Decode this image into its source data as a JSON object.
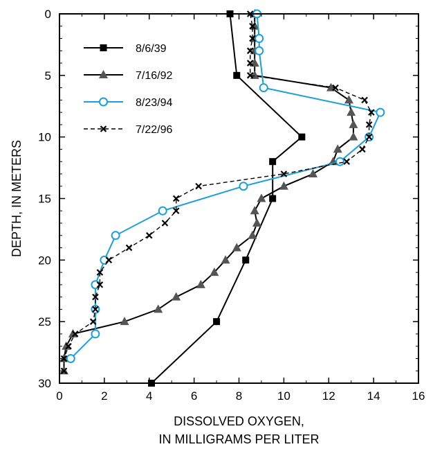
{
  "chart_data": {
    "type": "line",
    "xlabel_lines": [
      "DISSOLVED OXYGEN,",
      "IN MILLIGRAMS PER LITER"
    ],
    "ylabel": "DEPTH, IN METERS",
    "xlim": [
      0,
      16
    ],
    "ylim": [
      0,
      30
    ],
    "y_inverted": true,
    "x_ticks": [
      0,
      2,
      4,
      6,
      8,
      10,
      12,
      14,
      16
    ],
    "y_ticks": [
      0,
      5,
      10,
      15,
      20,
      25,
      30
    ],
    "grid": false,
    "legend_position": "top-left",
    "series": [
      {
        "name": "8/6/39",
        "color": "#000000",
        "marker": "square",
        "line": "solid",
        "points": [
          [
            7.6,
            0
          ],
          [
            7.9,
            5
          ],
          [
            10.8,
            10
          ],
          [
            9.5,
            12
          ],
          [
            9.5,
            15
          ],
          [
            8.3,
            20
          ],
          [
            7.0,
            25
          ],
          [
            4.1,
            30
          ]
        ]
      },
      {
        "name": "7/16/92",
        "color": "#000000",
        "marker": "triangle",
        "line": "solid",
        "points": [
          [
            8.7,
            0
          ],
          [
            8.7,
            1
          ],
          [
            8.7,
            2
          ],
          [
            8.7,
            3
          ],
          [
            8.7,
            4
          ],
          [
            8.7,
            5
          ],
          [
            12.1,
            6
          ],
          [
            12.9,
            7
          ],
          [
            13.0,
            8
          ],
          [
            13.1,
            9
          ],
          [
            13.1,
            10
          ],
          [
            12.4,
            11
          ],
          [
            12.2,
            12
          ],
          [
            11.3,
            13
          ],
          [
            10.0,
            14
          ],
          [
            9.0,
            15
          ],
          [
            8.7,
            16
          ],
          [
            8.8,
            17
          ],
          [
            8.6,
            18
          ],
          [
            7.9,
            19
          ],
          [
            7.4,
            20
          ],
          [
            6.9,
            21
          ],
          [
            6.3,
            22
          ],
          [
            5.2,
            23
          ],
          [
            4.4,
            24
          ],
          [
            2.9,
            25
          ],
          [
            0.6,
            26
          ],
          [
            0.3,
            27
          ],
          [
            0.2,
            28
          ],
          [
            0.2,
            29
          ]
        ]
      },
      {
        "name": "8/23/94",
        "color": "#1aa0d9",
        "marker": "circle",
        "line": "solid",
        "points": [
          [
            8.8,
            0
          ],
          [
            8.9,
            2
          ],
          [
            8.9,
            3
          ],
          [
            9.1,
            6
          ],
          [
            14.3,
            8
          ],
          [
            13.8,
            10
          ],
          [
            12.5,
            12
          ],
          [
            8.2,
            14
          ],
          [
            4.6,
            16
          ],
          [
            2.5,
            18
          ],
          [
            2.0,
            20
          ],
          [
            1.6,
            22
          ],
          [
            1.6,
            24
          ],
          [
            1.6,
            26
          ],
          [
            0.5,
            28
          ]
        ]
      },
      {
        "name": "7/22/96",
        "color": "#000000",
        "marker": "x",
        "line": "dashed",
        "points": [
          [
            8.5,
            0
          ],
          [
            8.6,
            1
          ],
          [
            8.6,
            2
          ],
          [
            8.5,
            3
          ],
          [
            8.5,
            4
          ],
          [
            8.5,
            5
          ],
          [
            12.3,
            6
          ],
          [
            13.6,
            7
          ],
          [
            13.9,
            8
          ],
          [
            13.8,
            9
          ],
          [
            13.8,
            10
          ],
          [
            13.5,
            11
          ],
          [
            12.8,
            12
          ],
          [
            10.0,
            13
          ],
          [
            6.2,
            14
          ],
          [
            5.2,
            15
          ],
          [
            5.2,
            16
          ],
          [
            4.7,
            17
          ],
          [
            4.0,
            18
          ],
          [
            3.1,
            19
          ],
          [
            2.2,
            20
          ],
          [
            1.8,
            21
          ],
          [
            1.8,
            22
          ],
          [
            1.6,
            23
          ],
          [
            1.6,
            24
          ],
          [
            1.5,
            25
          ],
          [
            0.7,
            26
          ],
          [
            0.4,
            27
          ],
          [
            0.2,
            28
          ],
          [
            0.2,
            29
          ]
        ]
      }
    ]
  }
}
